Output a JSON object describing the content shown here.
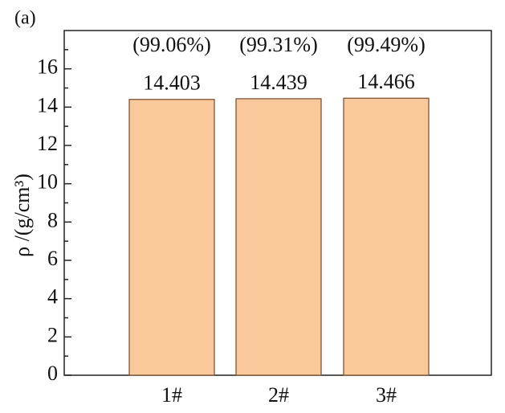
{
  "chart_data": {
    "type": "bar",
    "panel_label": "(a)",
    "y_label": "ρ /(g/cm³)",
    "categories": [
      "1#",
      "2#",
      "3#"
    ],
    "values": [
      14.403,
      14.439,
      14.466
    ],
    "annotations": [
      "(99.06%)",
      "(99.31%)",
      "(99.49%)"
    ],
    "color": "#f9c89b",
    "ylim": [
      0,
      18
    ],
    "yticks": [
      0,
      2,
      4,
      6,
      8,
      10,
      12,
      14,
      16
    ],
    "minor_yticks": [
      1,
      3,
      5,
      7,
      9,
      11,
      13,
      15,
      17
    ]
  }
}
